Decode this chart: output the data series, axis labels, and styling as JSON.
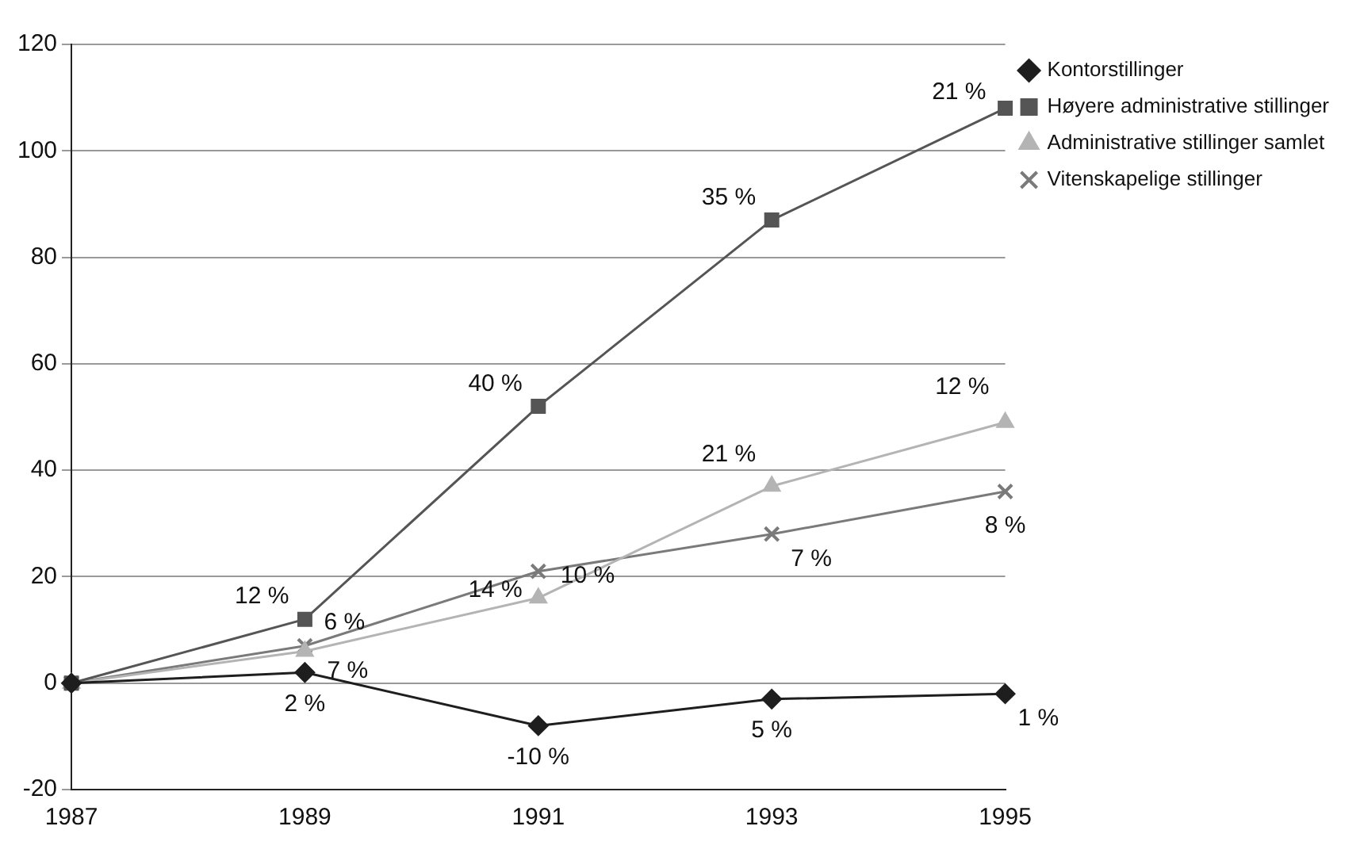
{
  "chart_data": {
    "type": "line",
    "categories": [
      "1987",
      "1989",
      "1991",
      "1993",
      "1995"
    ],
    "series": [
      {
        "name": "Kontorstillinger",
        "color": "#1e1e1e",
        "marker": "diamond",
        "values": [
          0,
          2,
          -8,
          -3,
          -2
        ]
      },
      {
        "name": "Høyere administrative stillinger",
        "color": "#555555",
        "marker": "square",
        "values": [
          0,
          12,
          52,
          87,
          108
        ]
      },
      {
        "name": "Administrative stillinger samlet",
        "color": "#b4b4b4",
        "marker": "triangle",
        "values": [
          0,
          6,
          16,
          37,
          49
        ]
      },
      {
        "name": "Vitenskapelige stillinger",
        "color": "#7a7a7a",
        "marker": "cross",
        "values": [
          0,
          7,
          21,
          28,
          36
        ]
      }
    ],
    "annotations": [
      {
        "text": "2 %",
        "x": "1989",
        "y": 2
      },
      {
        "text": "-10 %",
        "x": "1991",
        "y": -8
      },
      {
        "text": "5 %",
        "x": "1993",
        "y": -3
      },
      {
        "text": "1 %",
        "x": "1995",
        "y": -2
      },
      {
        "text": "12 %",
        "x": "1989",
        "y": 12
      },
      {
        "text": "40 %",
        "x": "1991",
        "y": 52
      },
      {
        "text": "35 %",
        "x": "1993",
        "y": 87
      },
      {
        "text": "21 %",
        "x": "1995",
        "y": 108
      },
      {
        "text": "6 %",
        "x": "1989",
        "y": 6
      },
      {
        "text": "10 %",
        "x": "1991",
        "y": 16
      },
      {
        "text": "21 %",
        "x": "1993",
        "y": 37
      },
      {
        "text": "12 %",
        "x": "1995",
        "y": 49
      },
      {
        "text": "7 %",
        "x": "1989",
        "y": 7
      },
      {
        "text": "14 %",
        "x": "1991",
        "y": 21
      },
      {
        "text": "7 %",
        "x": "1993",
        "y": 28
      },
      {
        "text": "8 %",
        "x": "1995",
        "y": 36
      }
    ],
    "ylim": [
      -20,
      120
    ],
    "yticks": [
      -20,
      0,
      20,
      40,
      60,
      80,
      100,
      120
    ],
    "grid": "y",
    "legend": "right"
  }
}
